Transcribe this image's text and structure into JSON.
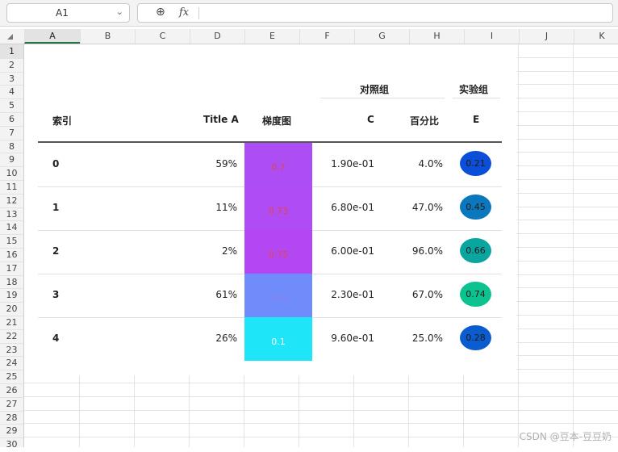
{
  "formula_bar": {
    "name_box": "A1",
    "zoom_icon": "zoom-in-icon",
    "fx_label": "fx",
    "formula": ""
  },
  "columns": [
    "A",
    "B",
    "C",
    "D",
    "E",
    "F",
    "G",
    "H",
    "I",
    "J",
    "K"
  ],
  "selected_column": "A",
  "rows": [
    "1",
    "2",
    "3",
    "4",
    "5",
    "6",
    "7",
    "8",
    "9",
    "10",
    "11",
    "12",
    "13",
    "14",
    "15",
    "16",
    "17",
    "18",
    "19",
    "20",
    "21",
    "22",
    "23",
    "24",
    "25",
    "26",
    "27",
    "28",
    "29",
    "30"
  ],
  "selected_row": "1",
  "table": {
    "group_headers": {
      "control": "对照组",
      "experiment": "实验组"
    },
    "col_headers": {
      "index": "索引",
      "title_a": "Title A",
      "gradient": "梯度图",
      "c": "C",
      "percent": "百分比",
      "e": "E"
    },
    "rows": [
      {
        "index": "0",
        "title_a": "59%",
        "gradient": "0.7",
        "gradient_color": "#ad4ef5",
        "gradient_text_color": "#e0464a",
        "c": "1.90e-01",
        "percent": "4.0%",
        "e": "0.21",
        "e_color": "#0b4fd8"
      },
      {
        "index": "1",
        "title_a": "11%",
        "gradient": "0.73",
        "gradient_color": "#b04cf4",
        "gradient_text_color": "#e0464a",
        "c": "6.80e-01",
        "percent": "47.0%",
        "e": "0.45",
        "e_color": "#0b78be"
      },
      {
        "index": "2",
        "title_a": "2%",
        "gradient": "0.75",
        "gradient_color": "#b348f2",
        "gradient_text_color": "#e0464a",
        "c": "6.00e-01",
        "percent": "96.0%",
        "e": "0.66",
        "e_color": "#0ba5a0"
      },
      {
        "index": "3",
        "title_a": "61%",
        "gradient": "0.45",
        "gradient_color": "#6f8cfa",
        "gradient_text_color": "#8a80e8",
        "c": "2.30e-01",
        "percent": "67.0%",
        "e": "0.74",
        "e_color": "#0cc28f"
      },
      {
        "index": "4",
        "title_a": "26%",
        "gradient": "0.1",
        "gradient_color": "#1ee6f8",
        "gradient_text_color": "#ffffff",
        "c": "9.60e-01",
        "percent": "25.0%",
        "e": "0.28",
        "e_color": "#0b5dcf"
      }
    ]
  },
  "watermark": "CSDN @豆本-豆豆奶"
}
